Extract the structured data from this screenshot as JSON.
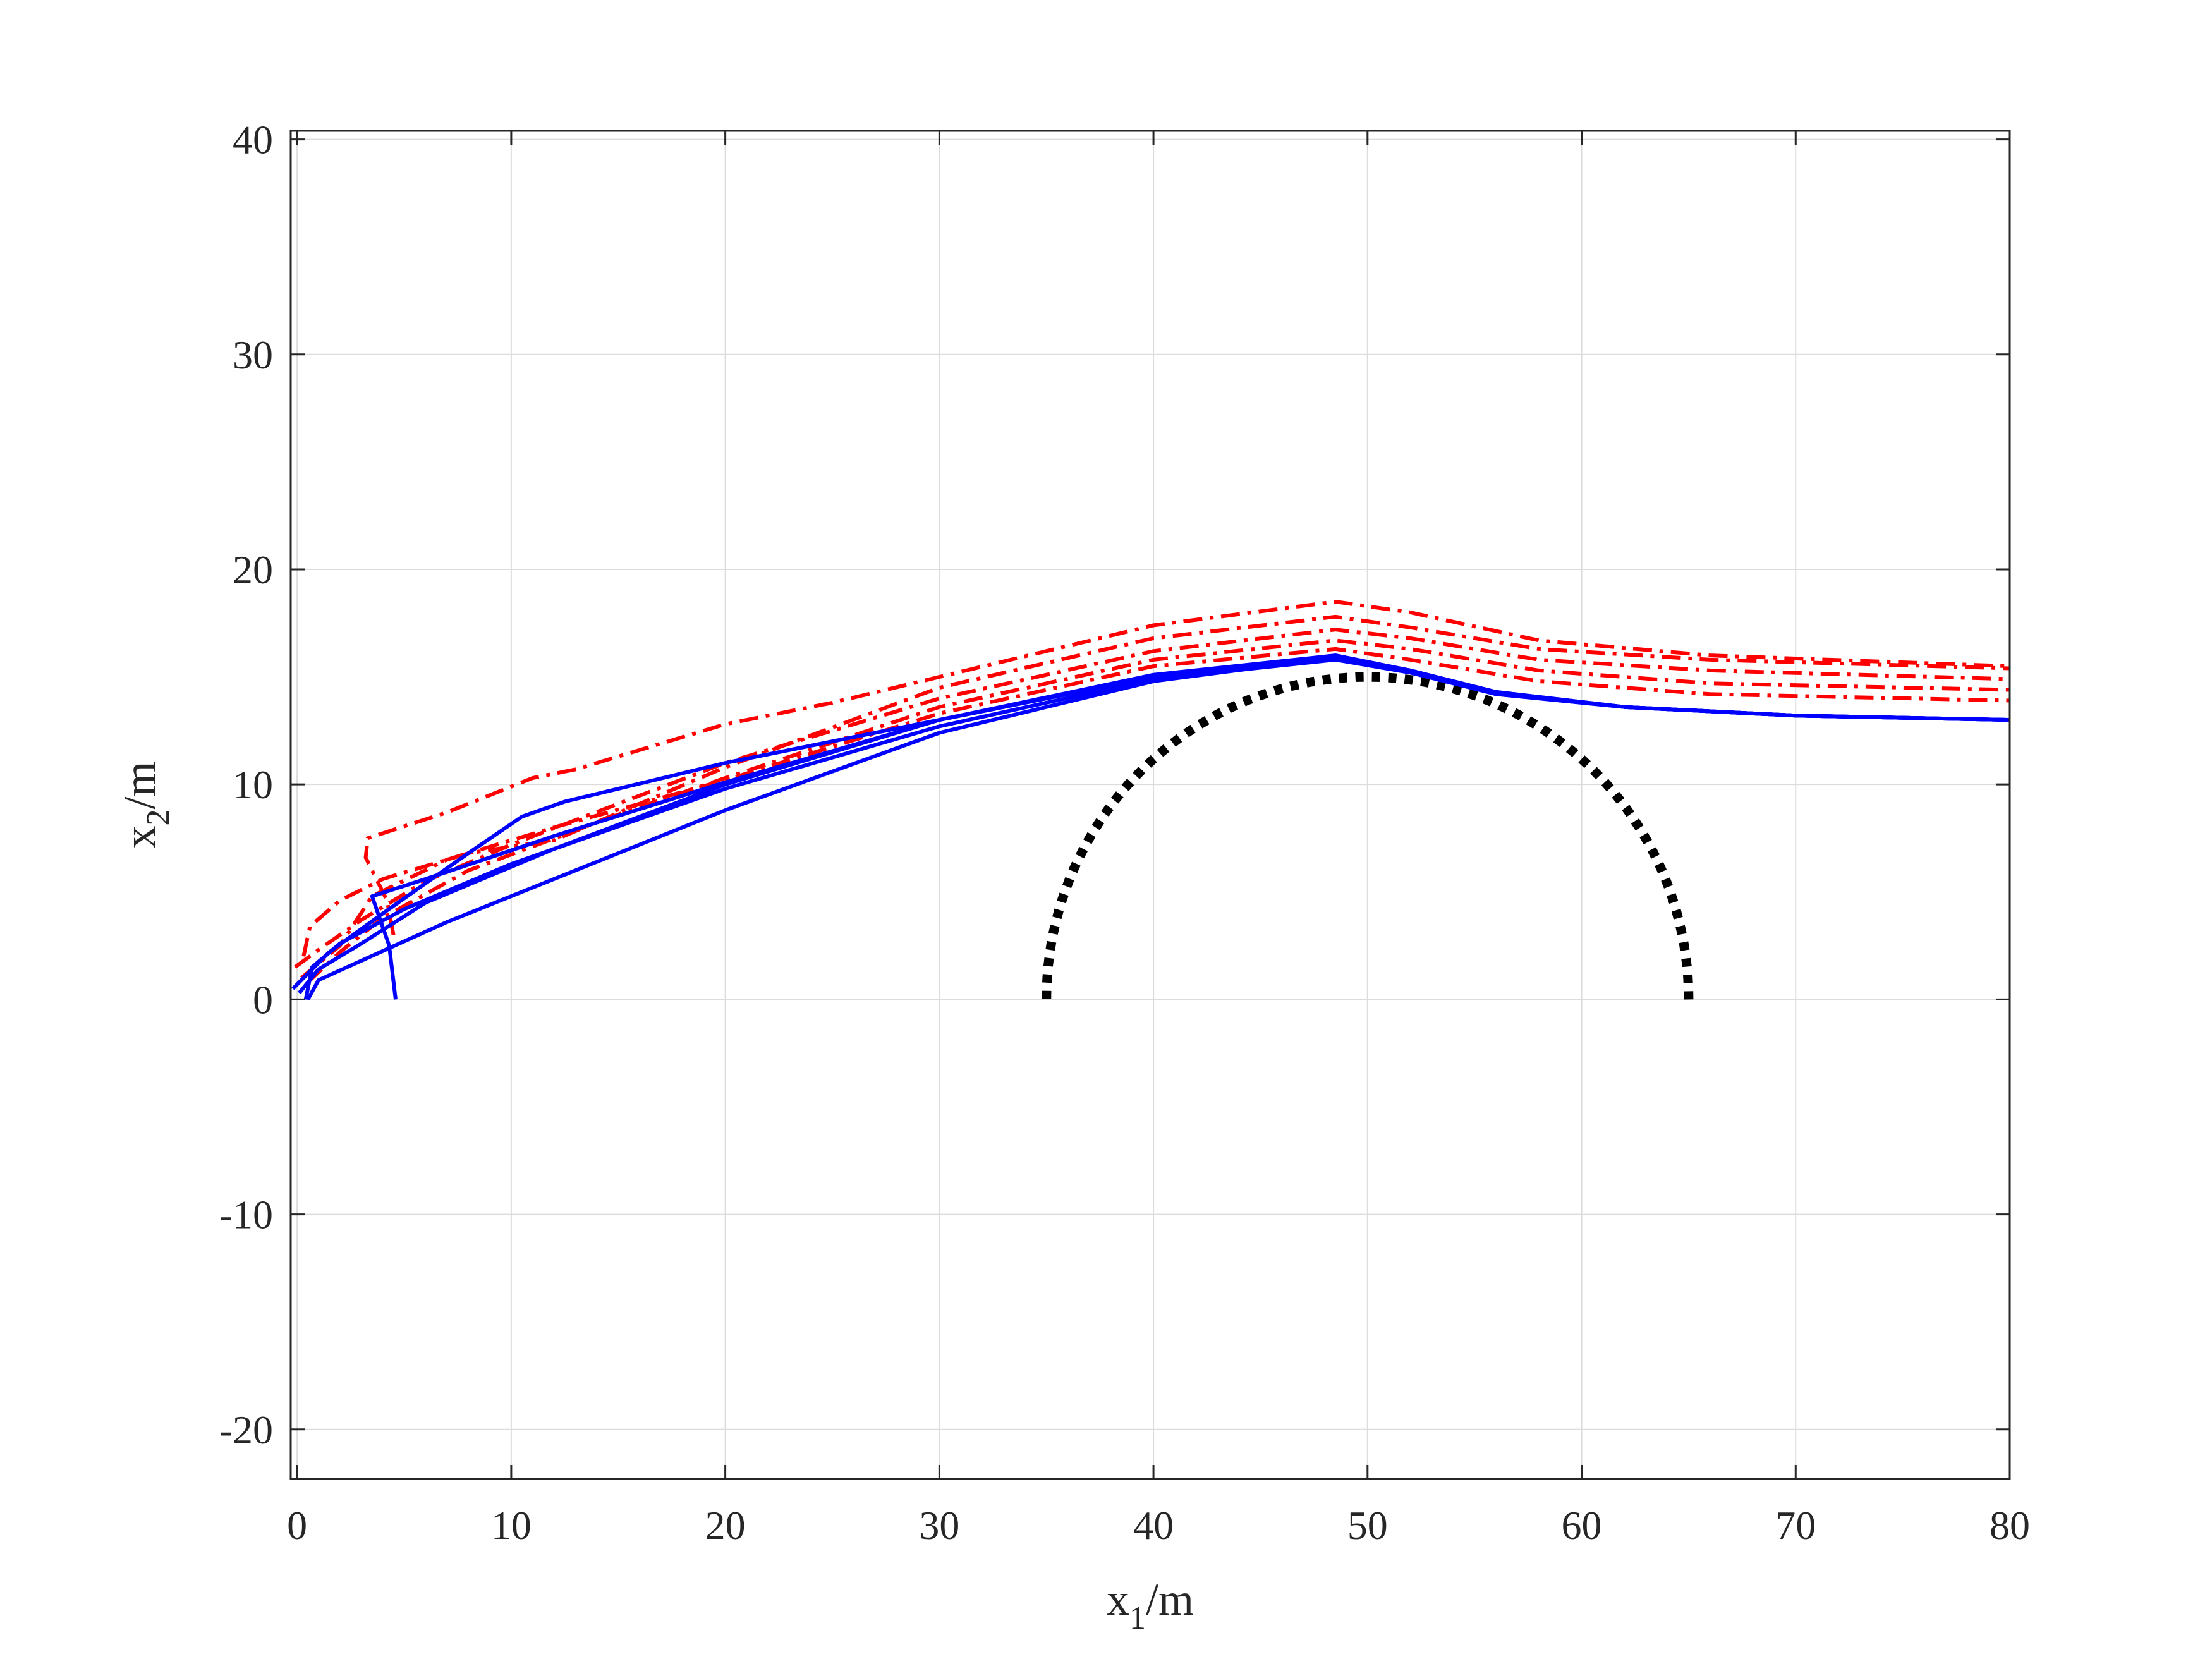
{
  "chart_data": {
    "type": "line",
    "title": "",
    "xlabel": {
      "main": "x",
      "sub": "1",
      "unit": "/m"
    },
    "ylabel": {
      "main": "x",
      "sub": "2",
      "unit": "/m"
    },
    "xlim": [
      -0.3,
      80
    ],
    "ylim": [
      -22.3,
      40.4
    ],
    "xticks": [
      0,
      10,
      20,
      30,
      40,
      50,
      60,
      70,
      80
    ],
    "yticks": [
      -20,
      -10,
      0,
      10,
      20,
      30,
      40
    ],
    "xtick_labels": [
      "0",
      "10",
      "20",
      "30",
      "40",
      "50",
      "60",
      "70",
      "80"
    ],
    "ytick_labels": [
      "-20",
      "-10",
      "0",
      "10",
      "20",
      "30",
      "40"
    ],
    "grid": true,
    "legend": "none",
    "colors": {
      "actual": "#0000ff",
      "reference": "#ff0000",
      "obstacle": "#000000",
      "grid": "#dcdcdc",
      "axis": "#262626"
    },
    "series": [
      {
        "style": "solid",
        "color": "#0000ff",
        "points": [
          [
            0.4,
            0
          ],
          [
            0.7,
            1.5
          ],
          [
            2,
            2.6
          ],
          [
            5,
            4.2
          ],
          [
            10,
            6.3
          ],
          [
            20,
            9.8
          ],
          [
            30,
            12.7
          ],
          [
            40,
            14.9
          ],
          [
            48.5,
            15.8
          ],
          [
            52,
            15.2
          ],
          [
            56,
            14.2
          ],
          [
            62,
            13.6
          ],
          [
            70,
            13.2
          ],
          [
            80,
            13
          ]
        ]
      },
      {
        "style": "solid",
        "color": "#0000ff",
        "points": [
          [
            0.1,
            0.3
          ],
          [
            1,
            1.4
          ],
          [
            3,
            2.6
          ],
          [
            6,
            4.5
          ],
          [
            12,
            7
          ],
          [
            20,
            10
          ],
          [
            30,
            13
          ],
          [
            40,
            15
          ],
          [
            48.5,
            16
          ],
          [
            52,
            15.3
          ],
          [
            56,
            14.3
          ],
          [
            62,
            13.6
          ],
          [
            70,
            13.2
          ],
          [
            80,
            13
          ]
        ]
      },
      {
        "style": "solid",
        "color": "#0000ff",
        "points": [
          [
            0.5,
            0
          ],
          [
            1,
            0.9
          ],
          [
            3,
            1.8
          ],
          [
            7,
            3.6
          ],
          [
            15,
            6.8
          ],
          [
            20,
            8.8
          ],
          [
            30,
            12.4
          ],
          [
            40,
            14.8
          ],
          [
            48.5,
            15.9
          ],
          [
            52,
            15.3
          ],
          [
            56,
            14.2
          ],
          [
            62,
            13.6
          ],
          [
            70,
            13.2
          ],
          [
            80,
            13
          ]
        ]
      },
      {
        "style": "solid",
        "color": "#0000ff",
        "points": [
          [
            4.6,
            0
          ],
          [
            4.3,
            2.5
          ],
          [
            3.5,
            4.8
          ],
          [
            6,
            5.6
          ],
          [
            12,
            7.6
          ],
          [
            20,
            10.1
          ],
          [
            30,
            13
          ],
          [
            40,
            15.1
          ],
          [
            48.5,
            16
          ],
          [
            52,
            15.3
          ],
          [
            56,
            14.3
          ],
          [
            62,
            13.6
          ],
          [
            70,
            13.2
          ],
          [
            80,
            13
          ]
        ]
      },
      {
        "style": "solid",
        "color": "#0000ff",
        "points": [
          [
            -0.2,
            0.5
          ],
          [
            1.5,
            2.2
          ],
          [
            4,
            4
          ],
          [
            8,
            6.8
          ],
          [
            10.5,
            8.5
          ],
          [
            12.5,
            9.2
          ],
          [
            20,
            11
          ],
          [
            25,
            12
          ],
          [
            30,
            13
          ],
          [
            40,
            15
          ],
          [
            48.5,
            15.9
          ],
          [
            52,
            15.3
          ],
          [
            56,
            14.3
          ],
          [
            62,
            13.6
          ],
          [
            70,
            13.2
          ],
          [
            80,
            13
          ]
        ]
      },
      {
        "style": "dashdot",
        "color": "#ff0000",
        "points": [
          [
            0.2,
            1
          ],
          [
            2,
            2.5
          ],
          [
            3.5,
            4.8
          ],
          [
            7,
            6.5
          ],
          [
            12,
            8
          ],
          [
            20,
            10.2
          ],
          [
            30,
            13.3
          ],
          [
            40,
            15.5
          ],
          [
            48.5,
            16.3
          ],
          [
            52,
            15.8
          ],
          [
            58,
            14.8
          ],
          [
            66,
            14.2
          ],
          [
            80,
            13.9
          ]
        ]
      },
      {
        "style": "dashdot",
        "color": "#ff0000",
        "points": [
          [
            0.5,
            0.8
          ],
          [
            2,
            2.2
          ],
          [
            4,
            3.8
          ],
          [
            8,
            6
          ],
          [
            15,
            8.6
          ],
          [
            20,
            10.3
          ],
          [
            30,
            13.6
          ],
          [
            40,
            15.8
          ],
          [
            48.5,
            16.7
          ],
          [
            52,
            16.3
          ],
          [
            58,
            15.3
          ],
          [
            66,
            14.7
          ],
          [
            80,
            14.4
          ]
        ]
      },
      {
        "style": "dashdot",
        "color": "#ff0000",
        "points": [
          [
            -0.1,
            1.5
          ],
          [
            1,
            2.3
          ],
          [
            3,
            3.7
          ],
          [
            6,
            5.5
          ],
          [
            10,
            7.2
          ],
          [
            20,
            11
          ],
          [
            30,
            14
          ],
          [
            40,
            16.2
          ],
          [
            48.5,
            17.2
          ],
          [
            52,
            16.8
          ],
          [
            58,
            15.8
          ],
          [
            66,
            15.3
          ],
          [
            80,
            14.9
          ]
        ]
      },
      {
        "style": "dashdot",
        "color": "#ff0000",
        "points": [
          [
            0.3,
            2
          ],
          [
            0.6,
            3.4
          ],
          [
            2,
            4.6
          ],
          [
            4,
            5.6
          ],
          [
            8,
            6.8
          ],
          [
            12,
            7.4
          ],
          [
            20,
            10.8
          ],
          [
            30,
            14.5
          ],
          [
            40,
            16.8
          ],
          [
            48.5,
            17.8
          ],
          [
            52,
            17.3
          ],
          [
            58,
            16.3
          ],
          [
            66,
            15.8
          ],
          [
            80,
            15.4
          ]
        ]
      },
      {
        "style": "dashdot",
        "color": "#ff0000",
        "points": [
          [
            4.5,
            3
          ],
          [
            4.2,
            4.6
          ],
          [
            3.2,
            6.6
          ],
          [
            3.3,
            7.5
          ],
          [
            7,
            8.7
          ],
          [
            11,
            10.3
          ],
          [
            13,
            10.7
          ],
          [
            20,
            12.8
          ],
          [
            25,
            13.8
          ],
          [
            30,
            15
          ],
          [
            40,
            17.4
          ],
          [
            48.5,
            18.5
          ],
          [
            52,
            18
          ],
          [
            58,
            16.7
          ],
          [
            66,
            16
          ],
          [
            80,
            15.5
          ]
        ]
      }
    ],
    "obstacle": {
      "style": "dotted",
      "color": "#000000",
      "center": [
        50,
        0
      ],
      "radius": 15,
      "theta_range_deg": [
        0,
        180
      ]
    }
  }
}
